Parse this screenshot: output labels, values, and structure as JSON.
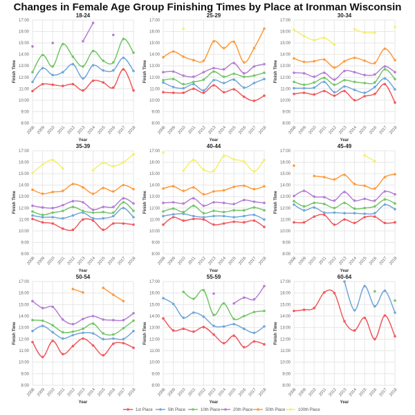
{
  "chart_data": {
    "type": "line",
    "title": "Changes in Female Age Group Finishing Times by Place at Ironman Wisconsin",
    "xlabel": "Year",
    "ylabel": "Finish Time",
    "x": [
      2008,
      2009,
      2010,
      2011,
      2012,
      2013,
      2014,
      2015,
      2016,
      2017,
      2018
    ],
    "yticks": [
      "8:00",
      "9:00",
      "10:00",
      "11:00",
      "12:00",
      "13:00",
      "14:00",
      "15:00",
      "16:00",
      "17:00"
    ],
    "ylim": [
      8,
      17
    ],
    "y_units": "hours",
    "grid": true,
    "legend_position": "bottom",
    "legend": [
      {
        "name": "1st Place",
        "color": "#f0585c"
      },
      {
        "name": "5th Place",
        "color": "#6fa6da"
      },
      {
        "name": "10th Place",
        "color": "#74c566"
      },
      {
        "name": "20th Place",
        "color": "#b57dd4"
      },
      {
        "name": "50th Place",
        "color": "#ff9a3c"
      },
      {
        "name": "100th Place",
        "color": "#f4ef6a"
      }
    ],
    "panels": [
      {
        "title": "18-24",
        "values": [
          [
            10.8,
            11.4,
            11.35,
            11.25,
            11.4,
            10.85,
            11.7,
            11.55,
            11.1,
            12.7,
            10.85
          ],
          [
            11.6,
            12.8,
            12.2,
            12.45,
            13.15,
            11.9,
            13.05,
            12.6,
            12.6,
            13.7,
            12.55
          ],
          [
            12.45,
            13.95,
            12.95,
            14.9,
            13.8,
            12.95,
            14.3,
            13.45,
            13.3,
            15.35,
            14.15
          ],
          [
            14.7,
            null,
            15.0,
            null,
            null,
            15.15,
            16.75,
            null,
            15.7,
            null,
            null
          ],
          [
            null,
            null,
            null,
            null,
            null,
            null,
            null,
            null,
            null,
            null,
            null
          ],
          [
            null,
            null,
            null,
            null,
            null,
            null,
            null,
            null,
            null,
            null,
            null
          ]
        ]
      },
      {
        "title": "25-29",
        "values": [
          [
            10.7,
            10.65,
            10.65,
            11.0,
            10.65,
            11.3,
            10.7,
            10.95,
            10.3,
            9.95,
            10.4
          ],
          [
            11.55,
            11.15,
            11.05,
            11.4,
            10.85,
            11.75,
            11.5,
            11.8,
            11.1,
            11.5,
            11.85
          ],
          [
            11.75,
            11.85,
            11.4,
            11.6,
            11.8,
            12.5,
            12.05,
            12.3,
            12.05,
            12.15,
            12.4
          ],
          [
            12.45,
            12.5,
            12.15,
            12.05,
            12.45,
            12.8,
            12.7,
            13.25,
            12.35,
            12.95,
            13.15
          ],
          [
            13.75,
            14.25,
            13.8,
            13.5,
            13.45,
            15.15,
            14.55,
            15.1,
            13.3,
            14.55,
            16.25
          ],
          [
            null,
            null,
            16.25,
            null,
            null,
            null,
            null,
            null,
            null,
            null,
            null
          ]
        ]
      },
      {
        "title": "30-34",
        "values": [
          [
            10.55,
            10.65,
            10.5,
            10.8,
            10.4,
            10.8,
            10.0,
            10.35,
            10.55,
            11.4,
            9.8
          ],
          [
            11.05,
            11.05,
            11.1,
            11.6,
            10.7,
            11.2,
            10.9,
            10.65,
            11.15,
            11.9,
            10.95
          ],
          [
            11.6,
            11.35,
            11.55,
            11.95,
            11.35,
            11.75,
            11.6,
            11.5,
            11.55,
            12.7,
            11.85
          ],
          [
            12.4,
            12.35,
            12.05,
            12.4,
            11.8,
            12.55,
            12.45,
            12.2,
            12.25,
            12.95,
            12.45
          ],
          [
            13.65,
            13.35,
            13.4,
            13.55,
            12.85,
            13.4,
            13.7,
            13.45,
            13.25,
            14.5,
            13.5
          ],
          [
            16.15,
            15.6,
            15.25,
            15.45,
            14.85,
            null,
            16.2,
            15.9,
            15.9,
            null,
            16.4
          ]
        ]
      },
      {
        "title": "35-39",
        "values": [
          [
            11.05,
            10.75,
            10.65,
            10.2,
            10.1,
            11.0,
            10.9,
            10.1,
            10.65,
            10.65,
            10.55
          ],
          [
            11.35,
            11.2,
            11.2,
            11.1,
            11.35,
            11.6,
            11.1,
            11.1,
            11.3,
            12.0,
            11.2
          ],
          [
            11.7,
            11.4,
            11.6,
            11.75,
            12.1,
            11.75,
            11.6,
            11.65,
            11.6,
            12.5,
            11.75
          ],
          [
            12.2,
            12.05,
            12.0,
            12.25,
            12.6,
            12.5,
            11.85,
            12.1,
            12.1,
            12.85,
            12.4
          ],
          [
            13.6,
            13.25,
            13.4,
            13.5,
            14.1,
            13.8,
            13.25,
            13.75,
            13.45,
            14.0,
            13.65
          ],
          [
            15.05,
            15.8,
            16.2,
            15.45,
            null,
            null,
            15.3,
            15.95,
            15.65,
            16.0,
            16.7
          ]
        ]
      },
      {
        "title": "40-44",
        "values": [
          [
            10.55,
            11.2,
            10.9,
            11.05,
            11.0,
            10.55,
            10.65,
            10.8,
            10.75,
            10.9,
            10.35
          ],
          [
            11.3,
            11.45,
            11.5,
            11.3,
            11.2,
            11.3,
            11.3,
            11.2,
            11.3,
            11.4,
            11.0
          ],
          [
            11.7,
            11.95,
            11.65,
            12.2,
            11.55,
            11.75,
            11.65,
            11.8,
            11.8,
            12.05,
            11.8
          ],
          [
            12.45,
            12.5,
            12.4,
            12.85,
            12.2,
            12.5,
            12.45,
            12.35,
            12.7,
            12.55,
            12.45
          ],
          [
            13.7,
            13.9,
            13.5,
            13.8,
            13.2,
            13.45,
            13.55,
            13.85,
            13.95,
            13.65,
            13.9
          ],
          [
            16.85,
            null,
            15.25,
            16.2,
            15.35,
            15.25,
            16.55,
            16.25,
            16.05,
            15.2,
            16.2
          ]
        ]
      },
      {
        "title": "45-49",
        "values": [
          [
            10.75,
            10.75,
            11.25,
            11.4,
            10.55,
            11.0,
            10.7,
            11.2,
            11.25,
            10.7,
            10.75
          ],
          [
            12.3,
            11.8,
            12.05,
            11.6,
            11.6,
            11.55,
            11.55,
            11.5,
            11.55,
            12.3,
            11.9
          ],
          [
            12.6,
            12.15,
            12.45,
            12.35,
            12.0,
            12.45,
            11.95,
            12.0,
            12.15,
            12.75,
            12.4
          ],
          [
            13.05,
            13.5,
            13.0,
            12.95,
            12.65,
            13.4,
            12.65,
            12.8,
            12.65,
            13.45,
            13.2
          ],
          [
            15.7,
            null,
            14.8,
            14.7,
            14.5,
            14.9,
            14.1,
            13.95,
            13.7,
            14.7,
            14.95
          ],
          [
            null,
            null,
            null,
            null,
            null,
            null,
            null,
            16.6,
            16.1,
            null,
            null
          ]
        ]
      },
      {
        "title": "50-54",
        "values": [
          [
            11.75,
            10.45,
            11.85,
            10.7,
            11.4,
            12.05,
            11.45,
            10.6,
            11.6,
            11.65,
            11.25
          ],
          [
            12.7,
            13.15,
            12.6,
            12.05,
            12.35,
            12.55,
            12.5,
            12.0,
            12.05,
            12.0,
            12.7
          ],
          [
            13.65,
            13.6,
            13.2,
            12.6,
            12.65,
            12.9,
            13.35,
            12.5,
            12.4,
            12.95,
            13.6
          ],
          [
            15.3,
            14.7,
            14.8,
            13.7,
            13.3,
            13.75,
            14.0,
            13.7,
            13.65,
            13.65,
            14.25
          ],
          [
            null,
            null,
            null,
            null,
            16.35,
            16.05,
            null,
            16.45,
            15.85,
            15.3,
            null
          ],
          [
            null,
            null,
            null,
            null,
            null,
            null,
            null,
            null,
            null,
            null,
            null
          ]
        ]
      },
      {
        "title": "55-59",
        "values": [
          [
            13.8,
            12.75,
            12.9,
            12.65,
            13.05,
            12.4,
            11.65,
            12.3,
            11.3,
            11.8,
            11.55
          ],
          [
            15.55,
            15.05,
            13.85,
            14.3,
            13.95,
            13.15,
            13.1,
            13.3,
            12.9,
            12.55,
            13.1
          ],
          [
            null,
            null,
            16.1,
            15.5,
            16.25,
            14.1,
            15.1,
            13.75,
            14.0,
            14.35,
            14.45
          ],
          [
            null,
            null,
            null,
            null,
            null,
            15.95,
            null,
            15.1,
            15.6,
            15.45,
            16.6
          ],
          [
            null,
            null,
            null,
            null,
            null,
            null,
            null,
            null,
            null,
            null,
            null
          ],
          [
            null,
            null,
            null,
            null,
            null,
            null,
            null,
            null,
            null,
            null,
            null
          ]
        ]
      },
      {
        "title": "60-64",
        "values": [
          [
            14.45,
            14.55,
            14.7,
            16.05,
            16.0,
            13.55,
            12.75,
            13.85,
            12.0,
            14.05,
            12.25
          ],
          [
            null,
            null,
            null,
            null,
            null,
            17.0,
            14.5,
            16.6,
            14.85,
            16.2,
            14.3
          ],
          [
            null,
            null,
            null,
            null,
            null,
            null,
            null,
            null,
            16.15,
            null,
            15.35
          ],
          [
            null,
            null,
            null,
            null,
            null,
            null,
            null,
            null,
            null,
            null,
            null
          ],
          [
            null,
            null,
            null,
            null,
            null,
            null,
            null,
            null,
            null,
            null,
            null
          ],
          [
            null,
            null,
            null,
            null,
            null,
            null,
            null,
            null,
            null,
            null,
            null
          ]
        ]
      }
    ]
  }
}
